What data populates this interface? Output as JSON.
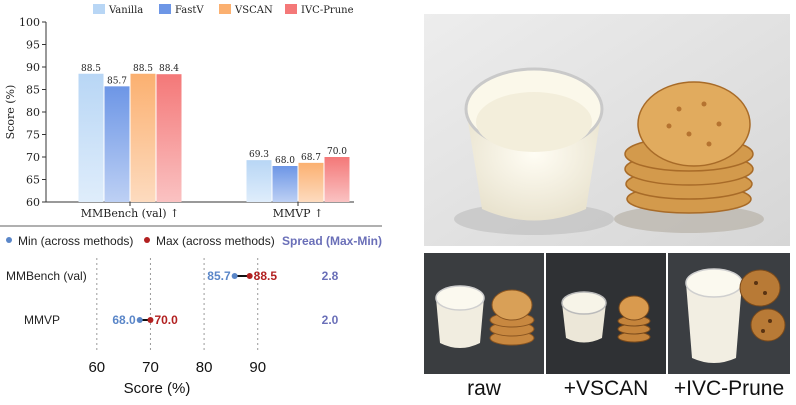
{
  "chart_data": [
    {
      "type": "bar",
      "categories": [
        "MMBench (val) ↑",
        "MMVP ↑"
      ],
      "series": [
        {
          "name": "Vanilla",
          "values": [
            88.5,
            69.3
          ],
          "color": "#b8d6f5"
        },
        {
          "name": "FastV",
          "values": [
            85.7,
            68.0
          ],
          "color": "#6d96e6"
        },
        {
          "name": "VSCAN",
          "values": [
            88.5,
            68.7
          ],
          "color": "#fbb070"
        },
        {
          "name": "IVC-Prune",
          "values": [
            88.4,
            70.0
          ],
          "color": "#f47878"
        }
      ],
      "value_labels": [
        [
          "88.5",
          "85.7",
          "88.5",
          "88.4"
        ],
        [
          "69.3",
          "68.0",
          "68.7",
          "70.0"
        ]
      ],
      "ylabel": "Score (%)",
      "ylim": [
        60,
        100
      ],
      "yticks": [
        60,
        65,
        70,
        75,
        80,
        85,
        90,
        95,
        100
      ],
      "legend": "top",
      "grid": false
    },
    {
      "type": "dumbbell",
      "legend_items": [
        {
          "label": "Min (across methods)",
          "color": "#5a86c8"
        },
        {
          "label": "Max (across methods)",
          "color": "#b22020"
        }
      ],
      "spread_header": "Spread (Max-Min)",
      "rows": [
        {
          "label": "MMBench (val)",
          "min": 85.7,
          "max": 88.5,
          "min_label": "85.7",
          "max_label": "88.5",
          "spread": "2.8"
        },
        {
          "label": "MMVP",
          "min": 68.0,
          "max": 70.0,
          "min_label": "68.0",
          "max_label": "70.0",
          "spread": "2.0"
        }
      ],
      "xlabel": "Score (%)",
      "xticks": [
        60,
        70,
        80,
        90
      ],
      "xlim": [
        55,
        99
      ],
      "grid": "vertical dashed"
    }
  ],
  "captions": {
    "raw": "raw",
    "vscan": "+VSCAN",
    "ivc": "+IVC-Prune"
  },
  "colors": {
    "min_color": "#5a86c8",
    "max_color": "#b22020",
    "spread_color": "#6a6fb8"
  }
}
